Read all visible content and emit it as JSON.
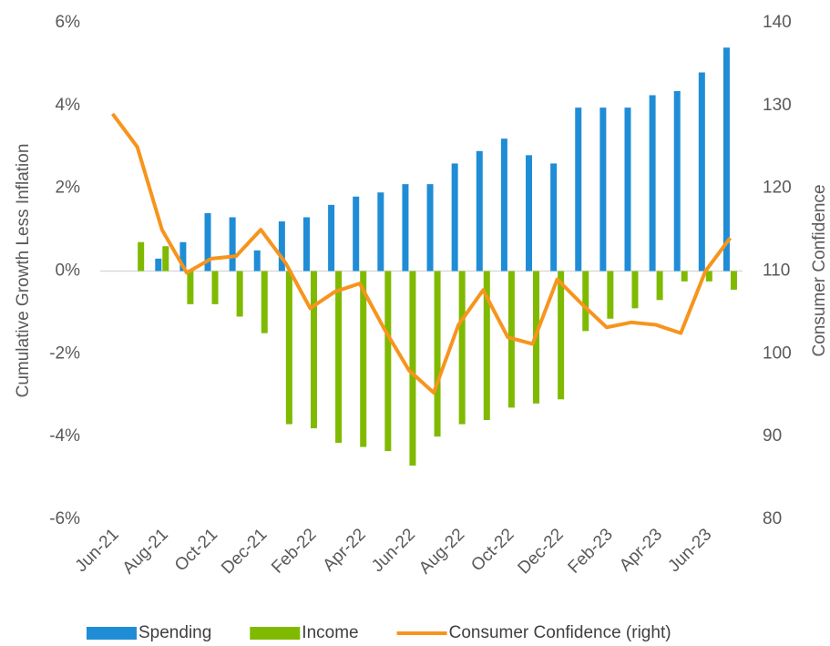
{
  "chart_data": {
    "type": "bar_line",
    "categories": [
      "Jun-21",
      null,
      "Aug-21",
      null,
      "Oct-21",
      null,
      "Dec-21",
      null,
      "Feb-22",
      null,
      "Apr-22",
      null,
      "Jun-22",
      null,
      "Aug-22",
      null,
      "Oct-22",
      null,
      "Dec-22",
      null,
      "Feb-23",
      null,
      "Apr-23",
      null,
      "Jun-23",
      null
    ],
    "series": [
      {
        "name": "Spending",
        "type": "bar",
        "color": "#1f8dd6",
        "values": [
          null,
          null,
          0.3,
          0.7,
          1.4,
          1.3,
          0.5,
          1.2,
          1.3,
          1.6,
          1.8,
          1.9,
          2.1,
          2.1,
          2.6,
          2.9,
          3.2,
          2.8,
          2.6,
          3.95,
          3.95,
          3.95,
          4.25,
          4.35,
          4.8,
          5.4
        ]
      },
      {
        "name": "Income",
        "type": "bar",
        "color": "#7fba00",
        "values": [
          null,
          0.7,
          0.6,
          -0.8,
          -0.8,
          -1.1,
          -1.5,
          -3.7,
          -3.8,
          -4.15,
          -4.25,
          -4.35,
          -4.7,
          -4.0,
          -3.7,
          -3.6,
          -3.3,
          -3.2,
          -3.1,
          -1.45,
          -1.15,
          -0.9,
          -0.7,
          -0.25,
          -0.25,
          -0.45
        ]
      },
      {
        "name": "Consumer Confidence (right)",
        "type": "line",
        "axis": "y2",
        "color": "#f7941d",
        "values": [
          129,
          125,
          115,
          109.8,
          111.5,
          111.8,
          115,
          111,
          105.5,
          107.5,
          108.5,
          103,
          98,
          95.3,
          103.5,
          107.7,
          102,
          101.2,
          109,
          106,
          103.2,
          103.8,
          103.5,
          102.5,
          110,
          114
        ]
      }
    ],
    "ylabel": "Cumulative Growth Less Inflation",
    "y2label": "Consumer Confidence",
    "ylim": [
      -6,
      6
    ],
    "yticks": [
      {
        "value": -6,
        "label": "-6%"
      },
      {
        "value": -4,
        "label": "-4%"
      },
      {
        "value": -2,
        "label": "-2%"
      },
      {
        "value": 0,
        "label": "0%"
      },
      {
        "value": 2,
        "label": "2%"
      },
      {
        "value": 4,
        "label": "4%"
      },
      {
        "value": 6,
        "label": "6%"
      }
    ],
    "y2lim": [
      80,
      140
    ],
    "y2ticks": [
      80,
      90,
      100,
      110,
      120,
      130,
      140
    ],
    "legend": "bottom"
  }
}
